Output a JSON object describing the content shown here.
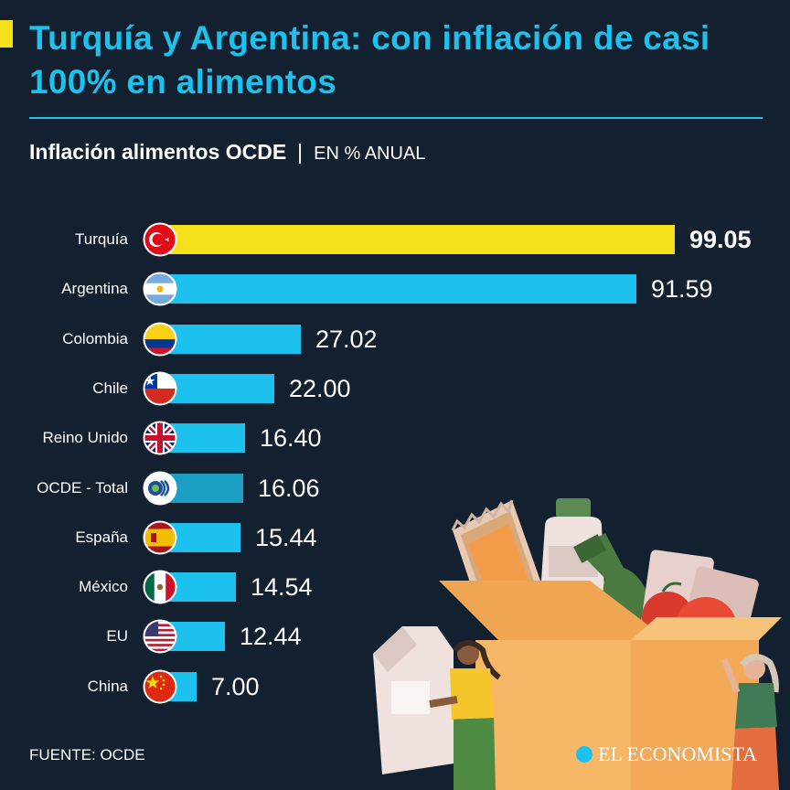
{
  "header": {
    "title": "Turquía y Argentina: con inflación de casi 100% en alimentos",
    "subtitle": "Inflación alimentos OCDE",
    "separator": "|",
    "unit": "EN % ANUAL"
  },
  "footer": {
    "source": "FUENTE: OCDE",
    "brand": "EL ECONOMISTA"
  },
  "colors": {
    "highlight": "#f5e01c",
    "bar": "#1dc1ee",
    "total": "#1a9fc2",
    "background": "#13202f"
  },
  "chart_data": {
    "type": "bar",
    "orientation": "horizontal",
    "title": "Inflación alimentos OCDE",
    "unit": "EN % ANUAL",
    "categories": [
      "Turquía",
      "Argentina",
      "Colombia",
      "Chile",
      "Reino Unido",
      "OCDE - Total",
      "España",
      "México",
      "EU",
      "China"
    ],
    "values": [
      99.05,
      91.59,
      27.02,
      22.0,
      16.4,
      16.06,
      15.44,
      14.54,
      12.44,
      7.0
    ],
    "value_labels": [
      "99.05",
      "91.59",
      "27.02",
      "22.00",
      "16.40",
      "16.06",
      "15.44",
      "14.54",
      "12.44",
      "7.00"
    ],
    "flags": [
      "turkey-flag-icon",
      "argentina-flag-icon",
      "colombia-flag-icon",
      "chile-flag-icon",
      "uk-flag-icon",
      "oecd-logo-icon",
      "spain-flag-icon",
      "mexico-flag-icon",
      "usa-flag-icon",
      "china-flag-icon"
    ],
    "highlight_index": 0,
    "total_index": 5,
    "xlim": [
      0,
      100
    ]
  }
}
